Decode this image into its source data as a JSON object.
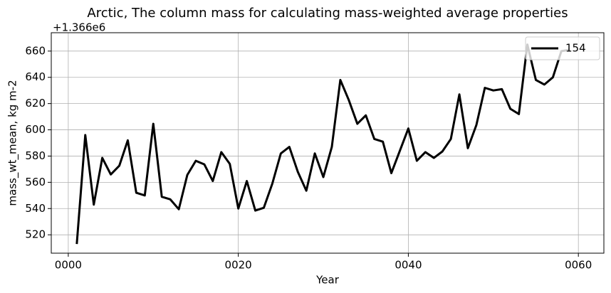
{
  "chart_data": {
    "type": "line",
    "title": "Arctic, The column mass for calculating mass-weighted average properties",
    "x_label": "Year",
    "y_label": "mass_wt_mean, kg m-2",
    "y_offset_label": "+1.366e6",
    "x": [
      1,
      2,
      3,
      4,
      5,
      6,
      7,
      8,
      9,
      10,
      11,
      12,
      13,
      14,
      15,
      16,
      17,
      18,
      19,
      20,
      21,
      22,
      23,
      24,
      25,
      26,
      27,
      28,
      29,
      30,
      31,
      32,
      33,
      34,
      35,
      36,
      37,
      38,
      39,
      40,
      41,
      42,
      43,
      44,
      45,
      46,
      47,
      48,
      49,
      50,
      51,
      52,
      53,
      54,
      55,
      56,
      57,
      58,
      59
    ],
    "series": [
      {
        "name": "154",
        "color": "#000000",
        "values": [
          513,
          596,
          543,
          578.6,
          566,
          572.6,
          592,
          552,
          550,
          604.6,
          549,
          547,
          539.5,
          565.6,
          576.4,
          573.7,
          561,
          583,
          574,
          540,
          561,
          538.5,
          540.6,
          559,
          582,
          587,
          568,
          553.6,
          582,
          564,
          587,
          638,
          622.6,
          604.6,
          611,
          593,
          591,
          567,
          584,
          601,
          576.4,
          583,
          578.6,
          583.5,
          593,
          627,
          586,
          603.6,
          632,
          630,
          631,
          616,
          612,
          665,
          638,
          634.5,
          640,
          660,
          661
        ]
      }
    ],
    "xlim": [
      -2,
      63
    ],
    "xticks": [
      {
        "value": 0,
        "label": "0000"
      },
      {
        "value": 20,
        "label": "0020"
      },
      {
        "value": 40,
        "label": "0040"
      },
      {
        "value": 60,
        "label": "0060"
      }
    ],
    "ylim": [
      506,
      674
    ],
    "yticks": [
      520,
      540,
      560,
      580,
      600,
      620,
      640,
      660
    ],
    "grid": true,
    "legend": "upper right"
  }
}
